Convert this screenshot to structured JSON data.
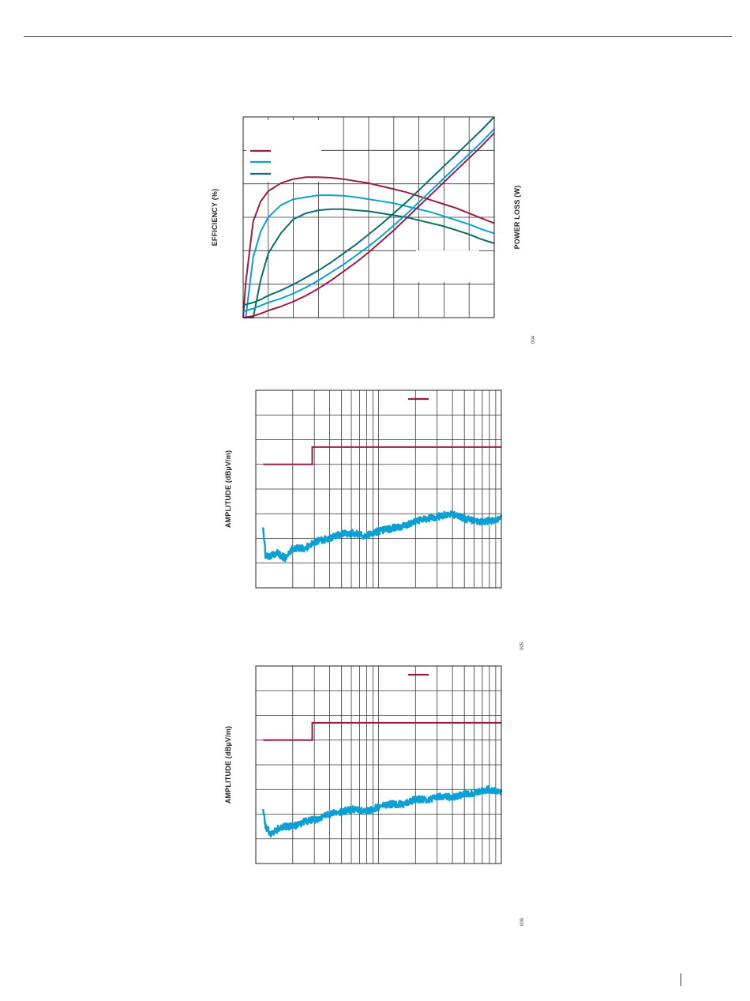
{
  "page": {
    "figure_ids": [
      "004",
      "005",
      "006"
    ]
  },
  "colors": {
    "red": "#9b1c45",
    "blue": "#0aa0d4",
    "teal": "#0a6e6e",
    "grid": "#333333"
  },
  "chart_data": [
    {
      "type": "line",
      "ylabel": "EFFICIENCY (%)",
      "y2label": "POWER LOSS (W)",
      "grid": true,
      "legend": "top-left",
      "x": [
        0,
        0.01,
        0.04,
        0.07,
        0.1,
        0.15,
        0.2,
        0.25,
        0.3,
        0.35,
        0.4,
        0.45,
        0.5,
        0.55,
        0.6,
        0.65,
        0.7,
        0.75,
        0.8,
        0.85,
        0.9,
        0.95,
        1.0
      ],
      "xlim": [
        0,
        1
      ],
      "ylim": [
        0,
        1
      ],
      "series": [
        {
          "color": "red",
          "kind": "efficiency",
          "values": [
            0.0,
            0.17,
            0.48,
            0.58,
            0.63,
            0.67,
            0.69,
            0.7,
            0.7,
            0.697,
            0.69,
            0.68,
            0.67,
            0.655,
            0.64,
            0.625,
            0.605,
            0.585,
            0.565,
            0.545,
            0.52,
            0.495,
            0.47
          ]
        },
        {
          "color": "blue",
          "kind": "efficiency",
          "values": [
            0.0,
            0.0,
            0.3,
            0.43,
            0.5,
            0.56,
            0.59,
            0.6,
            0.61,
            0.61,
            0.607,
            0.6,
            0.59,
            0.58,
            0.57,
            0.555,
            0.54,
            0.525,
            0.505,
            0.485,
            0.465,
            0.44,
            0.42
          ]
        },
        {
          "color": "teal",
          "kind": "efficiency",
          "values": [
            0.0,
            0.0,
            0.0,
            0.19,
            0.32,
            0.42,
            0.49,
            0.52,
            0.535,
            0.54,
            0.54,
            0.535,
            0.53,
            0.52,
            0.51,
            0.5,
            0.485,
            0.47,
            0.455,
            0.435,
            0.415,
            0.39,
            0.37
          ]
        },
        {
          "color": "red",
          "kind": "loss",
          "values": [
            0.0,
            0.002,
            0.008,
            0.02,
            0.035,
            0.055,
            0.08,
            0.11,
            0.145,
            0.185,
            0.23,
            0.275,
            0.325,
            0.38,
            0.435,
            0.495,
            0.555,
            0.615,
            0.675,
            0.735,
            0.795,
            0.855,
            0.92
          ]
        },
        {
          "color": "blue",
          "kind": "loss",
          "values": [
            0.03,
            0.035,
            0.045,
            0.06,
            0.075,
            0.095,
            0.12,
            0.15,
            0.185,
            0.225,
            0.265,
            0.31,
            0.355,
            0.405,
            0.46,
            0.515,
            0.575,
            0.635,
            0.695,
            0.755,
            0.815,
            0.875,
            0.94
          ]
        },
        {
          "color": "teal",
          "kind": "loss",
          "values": [
            0.06,
            0.065,
            0.075,
            0.09,
            0.11,
            0.135,
            0.165,
            0.2,
            0.235,
            0.275,
            0.32,
            0.365,
            0.415,
            0.465,
            0.52,
            0.575,
            0.635,
            0.695,
            0.755,
            0.815,
            0.875,
            0.935,
            1.0
          ]
        }
      ]
    },
    {
      "type": "line",
      "ylabel": "AMPLITUDE (dBµV/m)",
      "grid": true,
      "legend": "top-right",
      "xlim": [
        0,
        1
      ],
      "ylim": [
        0,
        8
      ],
      "series": [
        {
          "color": "red",
          "kind": "limit",
          "x": [
            0.03,
            0.23,
            0.23,
            1.0
          ],
          "values": [
            5.0,
            5.0,
            5.7,
            5.7
          ]
        },
        {
          "color": "blue",
          "kind": "emission",
          "x": [
            0.03,
            0.04,
            0.06,
            0.09,
            0.12,
            0.15,
            0.2,
            0.25,
            0.3,
            0.35,
            0.4,
            0.45,
            0.5,
            0.55,
            0.6,
            0.65,
            0.7,
            0.75,
            0.8,
            0.85,
            0.9,
            0.95,
            1.0
          ],
          "values": [
            2.4,
            1.3,
            1.3,
            1.4,
            1.2,
            1.6,
            1.6,
            1.9,
            2.0,
            2.2,
            2.2,
            2.1,
            2.3,
            2.4,
            2.5,
            2.7,
            2.8,
            2.9,
            3.0,
            2.8,
            2.7,
            2.7,
            2.8
          ]
        }
      ]
    },
    {
      "type": "line",
      "ylabel": "AMPLITUDE (dBµV/m)",
      "grid": true,
      "legend": "top-right",
      "xlim": [
        0,
        1
      ],
      "ylim": [
        0,
        8
      ],
      "series": [
        {
          "color": "red",
          "kind": "limit",
          "x": [
            0.03,
            0.23,
            0.23,
            1.0
          ],
          "values": [
            5.0,
            5.0,
            5.7,
            5.7
          ]
        },
        {
          "color": "blue",
          "kind": "emission",
          "x": [
            0.03,
            0.04,
            0.06,
            0.09,
            0.12,
            0.15,
            0.2,
            0.25,
            0.3,
            0.35,
            0.4,
            0.45,
            0.5,
            0.55,
            0.6,
            0.65,
            0.7,
            0.75,
            0.8,
            0.85,
            0.9,
            0.95,
            1.0
          ],
          "values": [
            2.2,
            1.5,
            1.2,
            1.4,
            1.5,
            1.5,
            1.7,
            1.8,
            2.0,
            2.1,
            2.2,
            2.1,
            2.3,
            2.4,
            2.4,
            2.6,
            2.6,
            2.7,
            2.7,
            2.8,
            2.9,
            3.0,
            2.9
          ]
        }
      ]
    }
  ]
}
